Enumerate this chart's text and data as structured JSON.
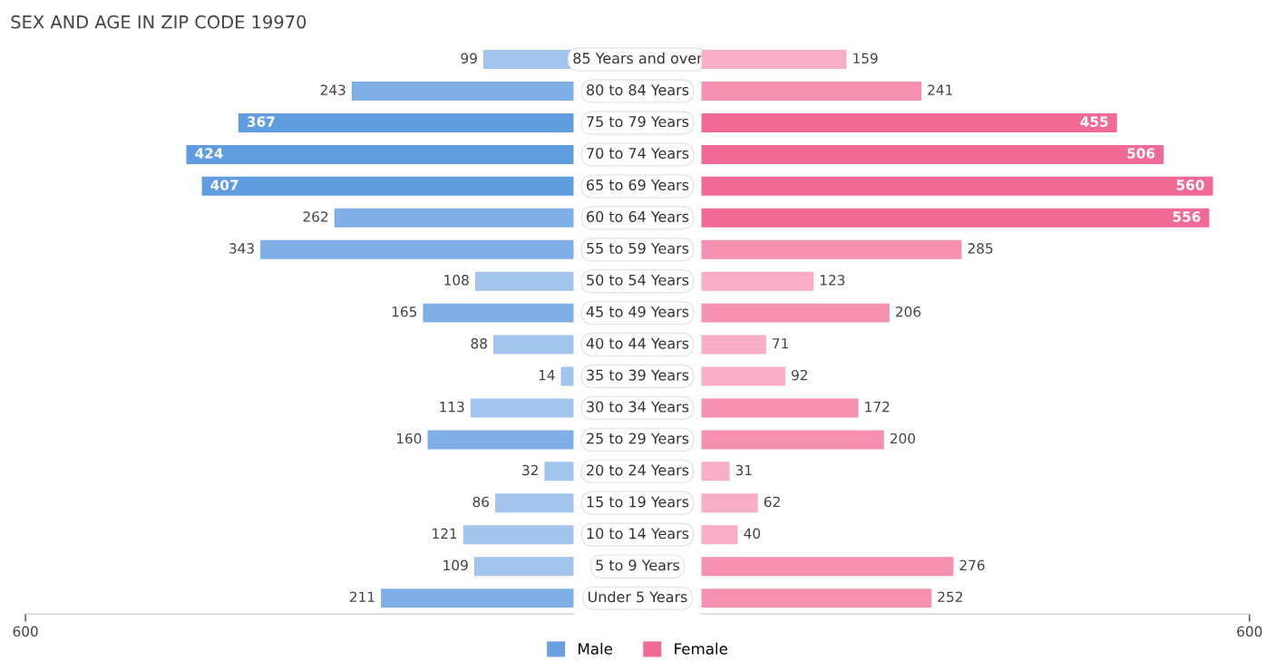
{
  "chart_data": [
    {
      "type": "bar",
      "orientation": "horizontal",
      "title": "SEX AND AGE IN ZIP CODE 19970",
      "categories": [
        "85 Years and over",
        "80 to 84 Years",
        "75 to 79 Years",
        "70 to 74 Years",
        "65 to 69 Years",
        "60 to 64 Years",
        "55 to 59 Years",
        "50 to 54 Years",
        "45 to 49 Years",
        "40 to 44 Years",
        "35 to 39 Years",
        "30 to 34 Years",
        "25 to 29 Years",
        "20 to 24 Years",
        "15 to 19 Years",
        "10 to 14 Years",
        "5 to 9 Years",
        "Under 5 Years"
      ],
      "series": [
        {
          "name": "Male",
          "color": "#6a9fe0",
          "values": [
            99,
            243,
            367,
            424,
            407,
            262,
            343,
            108,
            165,
            88,
            14,
            113,
            160,
            32,
            86,
            121,
            109,
            211
          ],
          "colors": [
            "#a3c4ed",
            "#7fafe6",
            "#5f9ce0",
            "#5f9ce0",
            "#5f9ce0",
            "#7fafe6",
            "#7fafe6",
            "#a3c4ed",
            "#7fafe6",
            "#a3c4ed",
            "#a3c4ed",
            "#a3c4ed",
            "#7fafe6",
            "#a3c4ed",
            "#a3c4ed",
            "#a3c4ed",
            "#a3c4ed",
            "#7fafe6"
          ]
        }
      ],
      "xlim": [
        600,
        0
      ],
      "xticks": [
        600
      ],
      "data_labels": true,
      "legend": "bottom"
    },
    {
      "type": "bar",
      "orientation": "horizontal",
      "categories": [
        null,
        null,
        null,
        null,
        null,
        null,
        null,
        null,
        null,
        null,
        null,
        null,
        null,
        null,
        null,
        null,
        null,
        null
      ],
      "series": [
        {
          "name": "Female",
          "color": "#f06a95",
          "values": [
            159,
            241,
            455,
            506,
            560,
            556,
            285,
            123,
            206,
            71,
            92,
            172,
            200,
            31,
            62,
            40,
            276,
            252
          ],
          "colors": [
            "#f8aec6",
            "#f590b1",
            "#f06a95",
            "#f06a95",
            "#f06a95",
            "#f06a95",
            "#f590b1",
            "#f8aec6",
            "#f590b1",
            "#f8aec6",
            "#f8aec6",
            "#f590b1",
            "#f590b1",
            "#f8aec6",
            "#f8aec6",
            "#f8aec6",
            "#f590b1",
            "#f590b1"
          ]
        }
      ],
      "xlim": [
        0,
        600
      ],
      "xticks": [
        600
      ],
      "data_labels": true,
      "legend": "bottom"
    }
  ]
}
